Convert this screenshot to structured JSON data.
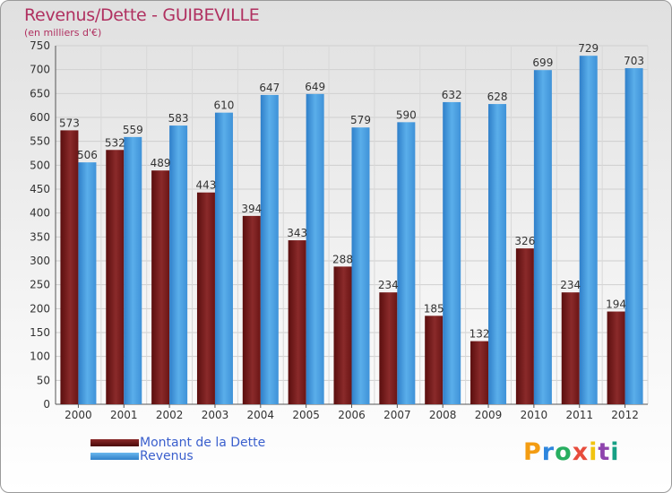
{
  "header": {
    "title": "Revenus/Dette - GUIBEVILLE",
    "subtitle": "(en milliers d'€)"
  },
  "logo": {
    "letters": [
      "P",
      "r",
      "o",
      "x",
      "i",
      "t",
      "i"
    ],
    "colors": [
      "#f39c12",
      "#2e86de",
      "#27ae60",
      "#e74c3c",
      "#f1c40f",
      "#8e44ad",
      "#16a085"
    ]
  },
  "chart_data": {
    "type": "bar",
    "categories": [
      "2000",
      "2001",
      "2002",
      "2003",
      "2004",
      "2005",
      "2006",
      "2007",
      "2008",
      "2009",
      "2010",
      "2011",
      "2012"
    ],
    "series": [
      {
        "name": "Montant de la Dette",
        "color": "#7a1b1b",
        "values": [
          573,
          532,
          489,
          443,
          394,
          343,
          288,
          234,
          185,
          132,
          326,
          234,
          194
        ]
      },
      {
        "name": "Revenus",
        "color": "#3a8fd6",
        "values": [
          506,
          559,
          583,
          610,
          647,
          649,
          579,
          590,
          632,
          628,
          699,
          729,
          703
        ]
      }
    ],
    "ylim": [
      0,
      750
    ],
    "yticks": [
      0,
      50,
      100,
      150,
      200,
      250,
      300,
      350,
      400,
      450,
      500,
      550,
      600,
      650,
      700,
      750
    ],
    "grid": true,
    "legend_position": "bottom-left"
  }
}
